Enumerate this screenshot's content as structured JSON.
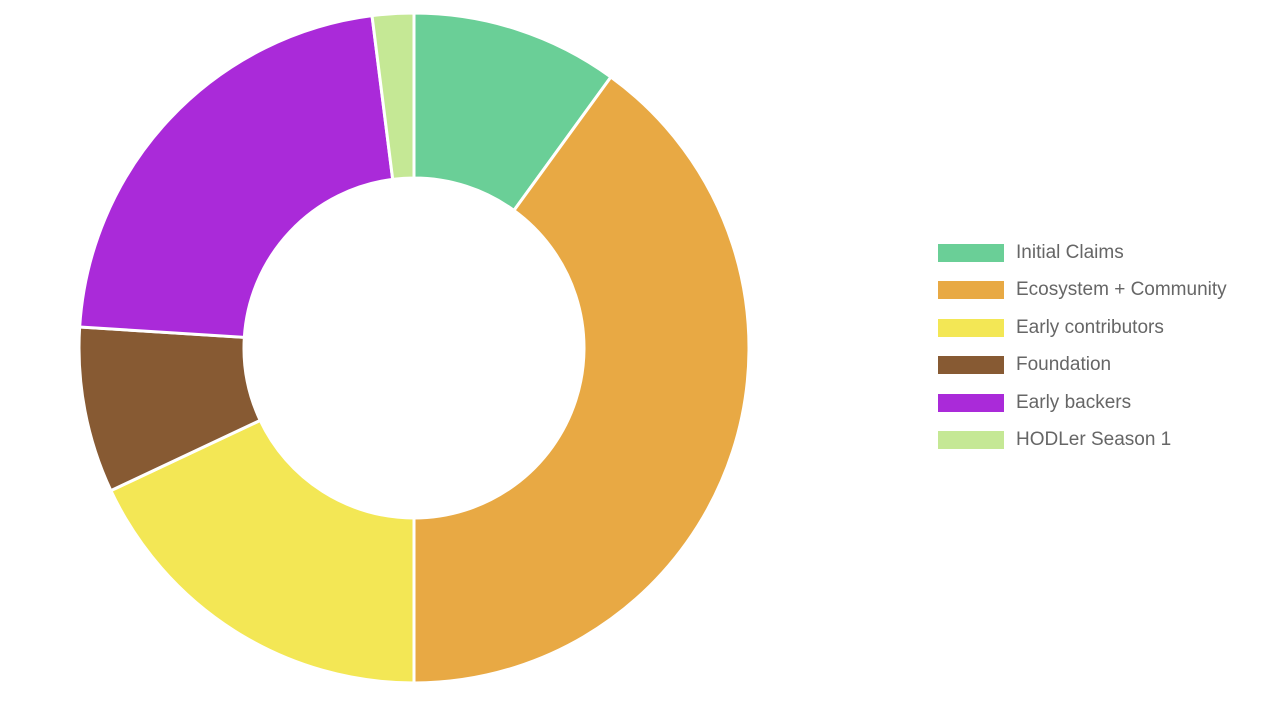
{
  "chart_data": {
    "type": "pie",
    "style": "donut",
    "legend_position": "right",
    "categories": [
      "Initial Claims",
      "Ecosystem + Community",
      "Early contributors",
      "Foundation",
      "Early backers",
      "HODLer Season 1"
    ],
    "values": [
      10,
      40,
      18,
      8,
      22,
      2
    ],
    "colors": [
      "#6acf97",
      "#e8a944",
      "#f3e755",
      "#875a33",
      "#aa2ad9",
      "#c5e895"
    ]
  }
}
